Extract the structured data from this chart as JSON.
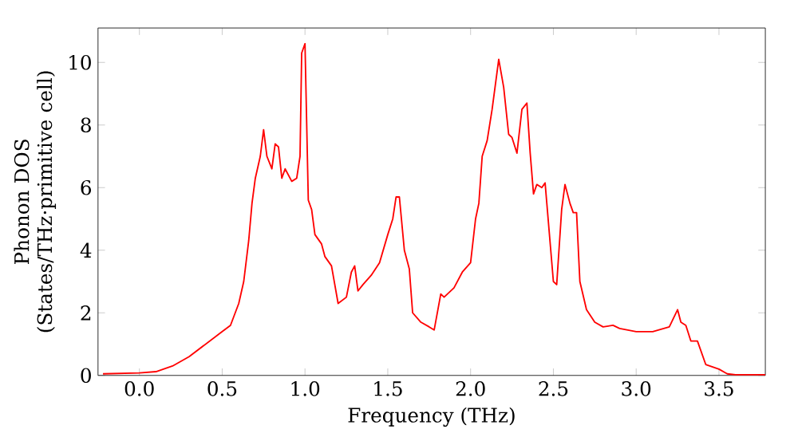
{
  "chart_data": {
    "type": "line",
    "xlabel": "Frequency (THz)",
    "ylabel": "Phonon DOS\n(States/THz·primitive cell)",
    "xlim": [
      -0.25,
      3.78
    ],
    "ylim": [
      0,
      11.1
    ],
    "xticks": [
      {
        "value": 0,
        "label": "0.0"
      },
      {
        "value": 0.5,
        "label": "0.5"
      },
      {
        "value": 1,
        "label": "1.0"
      },
      {
        "value": 1.5,
        "label": "1.5"
      },
      {
        "value": 2,
        "label": "2.0"
      },
      {
        "value": 2.5,
        "label": "2.5"
      },
      {
        "value": 3,
        "label": "3.0"
      },
      {
        "value": 3.5,
        "label": "3.5"
      }
    ],
    "yticks": [
      0,
      2,
      4,
      6,
      8,
      10
    ],
    "marker": "none",
    "line_style": "solid",
    "series": [
      {
        "color": "#ff0000",
        "x": [
          -0.22,
          0.0,
          0.1,
          0.2,
          0.3,
          0.4,
          0.5,
          0.55,
          0.6,
          0.63,
          0.66,
          0.68,
          0.7,
          0.73,
          0.75,
          0.77,
          0.8,
          0.82,
          0.84,
          0.86,
          0.88,
          0.92,
          0.95,
          0.97,
          0.98,
          1.0,
          1.02,
          1.04,
          1.06,
          1.1,
          1.12,
          1.16,
          1.2,
          1.25,
          1.28,
          1.3,
          1.32,
          1.35,
          1.4,
          1.45,
          1.5,
          1.53,
          1.55,
          1.57,
          1.6,
          1.63,
          1.65,
          1.7,
          1.75,
          1.78,
          1.82,
          1.84,
          1.9,
          1.95,
          2.0,
          2.03,
          2.05,
          2.07,
          2.1,
          2.13,
          2.17,
          2.2,
          2.23,
          2.25,
          2.28,
          2.31,
          2.34,
          2.36,
          2.38,
          2.4,
          2.43,
          2.45,
          2.5,
          2.52,
          2.55,
          2.57,
          2.6,
          2.62,
          2.64,
          2.66,
          2.7,
          2.75,
          2.8,
          2.86,
          2.9,
          3.0,
          3.1,
          3.2,
          3.25,
          3.27,
          3.3,
          3.33,
          3.37,
          3.42,
          3.5,
          3.55,
          3.6,
          3.78
        ],
        "values": [
          0.05,
          0.08,
          0.12,
          0.3,
          0.6,
          1.0,
          1.4,
          1.6,
          2.3,
          3.0,
          4.3,
          5.5,
          6.3,
          7.0,
          7.85,
          7.0,
          6.6,
          7.4,
          7.3,
          6.3,
          6.6,
          6.2,
          6.3,
          7.0,
          10.3,
          10.6,
          5.6,
          5.3,
          4.5,
          4.2,
          3.8,
          3.5,
          2.3,
          2.5,
          3.3,
          3.5,
          2.7,
          2.9,
          3.2,
          3.6,
          4.5,
          5.0,
          5.7,
          5.7,
          4.0,
          3.4,
          2.0,
          1.7,
          1.55,
          1.45,
          2.6,
          2.5,
          2.8,
          3.3,
          3.6,
          5.0,
          5.5,
          7.0,
          7.5,
          8.5,
          10.1,
          9.2,
          7.7,
          7.6,
          7.1,
          8.5,
          8.7,
          7.1,
          5.8,
          6.1,
          6.0,
          6.15,
          3.0,
          2.9,
          5.3,
          6.1,
          5.5,
          5.2,
          5.2,
          3.0,
          2.1,
          1.7,
          1.55,
          1.6,
          1.5,
          1.4,
          1.4,
          1.55,
          2.1,
          1.7,
          1.6,
          1.1,
          1.1,
          0.35,
          0.2,
          0.05,
          0.02,
          0.02
        ]
      }
    ]
  }
}
